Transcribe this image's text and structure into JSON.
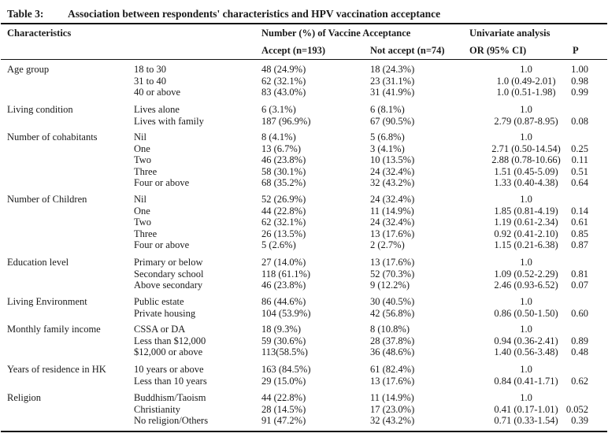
{
  "table": {
    "label": "Table 3:",
    "title": "Association between respondents' characteristics and HPV vaccination acceptance",
    "headers": {
      "characteristics": "Characteristics",
      "number_group": "Number (%) of Vaccine Acceptance",
      "univariate": "Univariate analysis",
      "accept": "Accept (n=193)",
      "not_accept": "Not accept (n=74)",
      "or": "OR  (95% CI)",
      "p": "P"
    },
    "groups": [
      {
        "name": "Age group",
        "rows": [
          {
            "sub": "18 to 30",
            "accept": "48 (24.9%)",
            "not_accept": "18 (24.3%)",
            "or": "1.0",
            "p": "1.00"
          },
          {
            "sub": "31 to 40",
            "accept": "62 (32.1%)",
            "not_accept": "23 (31.1%)",
            "or": "1.0 (0.49-2.01)",
            "p": "0.98"
          },
          {
            "sub": "40 or above",
            "accept": "83 (43.0%)",
            "not_accept": "31 (41.9%)",
            "or": "1.0 (0.51-1.98)",
            "p": "0.99"
          }
        ]
      },
      {
        "name": "Living condition",
        "rows": [
          {
            "sub": "Lives alone",
            "accept": "6 (3.1%)",
            "not_accept": "6 (8.1%)",
            "or": "1.0",
            "p": ""
          },
          {
            "sub": "Lives with family",
            "accept": "187 (96.9%)",
            "not_accept": "67 (90.5%)",
            "or": "2.79 (0.87-8.95)",
            "p": "0.08"
          }
        ]
      },
      {
        "name": "Number of cohabitants",
        "rows": [
          {
            "sub": "Nil",
            "accept": "8 (4.1%)",
            "not_accept": "5 (6.8%)",
            "or": "1.0",
            "p": ""
          },
          {
            "sub": "One",
            "accept": "13 (6.7%)",
            "not_accept": "3 (4.1%)",
            "or": "2.71 (0.50-14.54)",
            "p": "0.25"
          },
          {
            "sub": "Two",
            "accept": "46 (23.8%)",
            "not_accept": "10 (13.5%)",
            "or": "2.88 (0.78-10.66)",
            "p": "0.11"
          },
          {
            "sub": "Three",
            "accept": "58 (30.1%)",
            "not_accept": "24 (32.4%)",
            "or": "1.51 (0.45-5.09)",
            "p": "0.51"
          },
          {
            "sub": "Four or above",
            "accept": "68 (35.2%)",
            "not_accept": "32 (43.2%)",
            "or": "1.33 (0.40-4.38)",
            "p": "0.64"
          }
        ]
      },
      {
        "name": "Number of Children",
        "rows": [
          {
            "sub": "Nil",
            "accept": "52 (26.9%)",
            "not_accept": "24 (32.4%)",
            "or": "1.0",
            "p": ""
          },
          {
            "sub": "One",
            "accept": "44 (22.8%)",
            "not_accept": "11 (14.9%)",
            "or": "1.85 (0.81-4.19)",
            "p": "0.14"
          },
          {
            "sub": "Two",
            "accept": "62 (32.1%)",
            "not_accept": "24 (32.4%)",
            "or": "1.19 (0.61-2.34)",
            "p": "0.61"
          },
          {
            "sub": "Three",
            "accept": "26 (13.5%)",
            "not_accept": "13 (17.6%)",
            "or": "0.92 (0.41-2.10)",
            "p": "0.85"
          },
          {
            "sub": "Four or above",
            "accept": "5 (2.6%)",
            "not_accept": "2 (2.7%)",
            "or": "1.15 (0.21-6.38)",
            "p": "0.87"
          }
        ]
      },
      {
        "name": "Education level",
        "rows": [
          {
            "sub": "Primary or below",
            "accept": "27 (14.0%)",
            "not_accept": "13 (17.6%)",
            "or": "1.0",
            "p": ""
          },
          {
            "sub": "Secondary school",
            "accept": "118 (61.1%)",
            "not_accept": "52 (70.3%)",
            "or": "1.09 (0.52-2.29)",
            "p": "0.81"
          },
          {
            "sub": "Above secondary",
            "accept": "46 (23.8%)",
            "not_accept": "9 (12.2%)",
            "or": "2.46 (0.93-6.52)",
            "p": "0.07"
          }
        ]
      },
      {
        "name": "Living Environment",
        "rows": [
          {
            "sub": "Public estate",
            "accept": "86 (44.6%)",
            "not_accept": "30 (40.5%)",
            "or": "1.0",
            "p": ""
          },
          {
            "sub": "Private housing",
            "accept": "104 (53.9%)",
            "not_accept": "42 (56.8%)",
            "or": "0.86 (0.50-1.50)",
            "p": "0.60"
          }
        ]
      },
      {
        "name": "Monthly family income",
        "rows": [
          {
            "sub": "CSSA or DA",
            "accept": "18 (9.3%)",
            "not_accept": "8 (10.8%)",
            "or": "1.0",
            "p": ""
          },
          {
            "sub": "Less than $12,000",
            "accept": "59 (30.6%)",
            "not_accept": "28 (37.8%)",
            "or": "0.94 (0.36-2.41)",
            "p": "0.89"
          },
          {
            "sub": "$12,000 or above",
            "accept": "113(58.5%)",
            "not_accept": "36 (48.6%)",
            "or": "1.40 (0.56-3.48)",
            "p": "0.48"
          }
        ]
      },
      {
        "name": "Years of residence in HK",
        "rows": [
          {
            "sub": "10 years or above",
            "accept": "163 (84.5%)",
            "not_accept": "61 (82.4%)",
            "or": "1.0",
            "p": ""
          },
          {
            "sub": "Less than 10 years",
            "accept": "29 (15.0%)",
            "not_accept": "13 (17.6%)",
            "or": "0.84 (0.41-1.71)",
            "p": "0.62"
          }
        ]
      },
      {
        "name": "Religion",
        "rows": [
          {
            "sub": "Buddhism/Taoism",
            "accept": "44 (22.8%)",
            "not_accept": "11 (14.9%)",
            "or": "1.0",
            "p": ""
          },
          {
            "sub": "Christianity",
            "accept": "28 (14.5%)",
            "not_accept": "17 (23.0%)",
            "or": "0.41 (0.17-1.01)",
            "p": "0.052"
          },
          {
            "sub": "No religion/Others",
            "accept": "91 (47.2%)",
            "not_accept": "32 (43.2%)",
            "or": "0.71 (0.33-1.54)",
            "p": "0.39"
          }
        ]
      }
    ]
  }
}
